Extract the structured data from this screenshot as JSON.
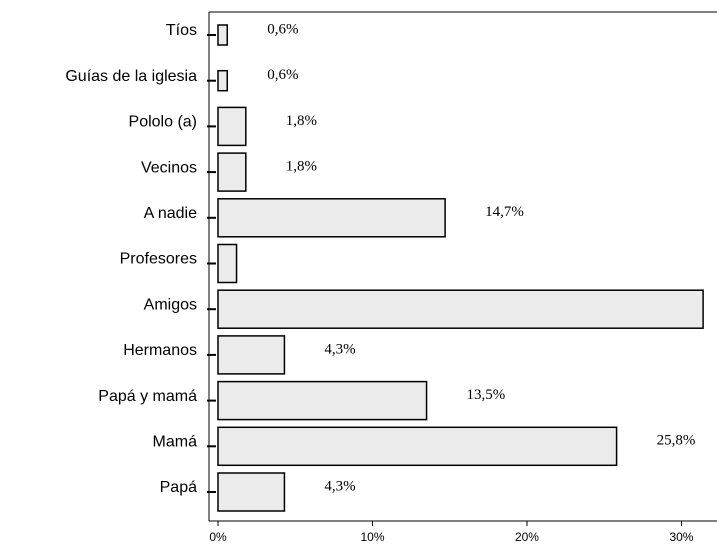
{
  "chart_data": {
    "type": "hbar",
    "categories": [
      "Tíos",
      "Guías de la iglesia",
      "Pololo (a)",
      "Vecinos",
      "A nadie",
      "Profesores",
      "Amigos",
      "Hermanos",
      "Papá y mamá",
      "Mamá",
      "Papá"
    ],
    "values": [
      0.6,
      0.6,
      1.8,
      1.8,
      14.7,
      1.2,
      31.4,
      4.3,
      13.5,
      25.8,
      4.3
    ],
    "value_labels": [
      "0,6%",
      "0,6%",
      "1,8%",
      "1,8%",
      "14,7%",
      null,
      null,
      "4,3%",
      "13,5%",
      "25,8%",
      "4,3%"
    ],
    "color": "#ebebeb",
    "xlim": [
      0,
      32.3
    ],
    "xticks": [
      {
        "value": 0,
        "label": "0%"
      },
      {
        "value": 10,
        "label": "10%"
      },
      {
        "value": 20,
        "label": "20%"
      },
      {
        "value": 30,
        "label": "30%"
      }
    ]
  }
}
